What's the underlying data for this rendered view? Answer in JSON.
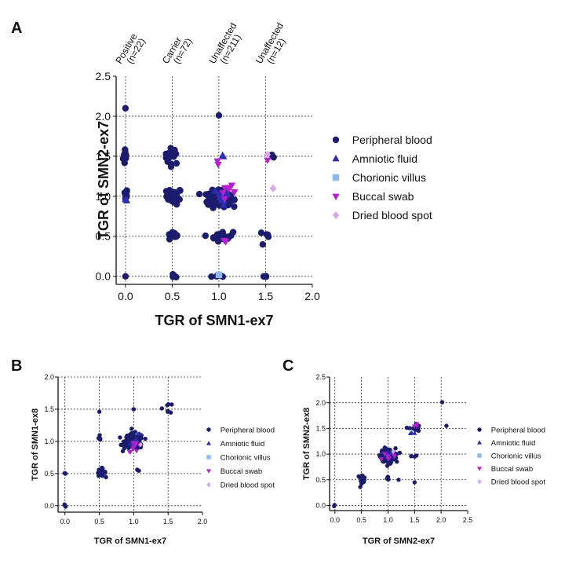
{
  "colors": {
    "peripheral_blood": "#1c1c6e",
    "amniotic_fluid": "#2d2db3",
    "chorionic_villus": "#8fb8f0",
    "buccal_swab": "#b51fd1",
    "dried_blood_spot": "#d9a6f0",
    "grid": "#333333"
  },
  "legend": [
    {
      "key": "peripheral_blood",
      "label": "Peripheral blood",
      "marker": "circle"
    },
    {
      "key": "amniotic_fluid",
      "label": "Amniotic fluid",
      "marker": "triangle-up"
    },
    {
      "key": "chorionic_villus",
      "label": "Chorionic villus",
      "marker": "square"
    },
    {
      "key": "buccal_swab",
      "label": "Buccal swab",
      "marker": "triangle-down"
    },
    {
      "key": "dried_blood_spot",
      "label": "Dried blood spot",
      "marker": "diamond"
    }
  ],
  "panels": {
    "A": {
      "letter": "A"
    },
    "B": {
      "letter": "B"
    },
    "C": {
      "letter": "C"
    }
  },
  "chart_data": [
    {
      "id": "A",
      "type": "scatter",
      "xlabel": "TGR of SMN1-ex7",
      "ylabel": "TGR of SMN2-ex7",
      "xlim": [
        -0.1,
        2.0
      ],
      "ylim": [
        -0.1,
        2.5
      ],
      "xticks": [
        0.0,
        0.5,
        1.0,
        1.5,
        2.0
      ],
      "xtick_labels": [
        "0.0",
        "0.5",
        "1.0",
        "1.5",
        "2.0"
      ],
      "yticks": [
        0.0,
        0.5,
        1.0,
        1.5,
        2.0,
        2.5
      ],
      "ytick_labels": [
        "0.0",
        "0.5",
        "1.0",
        "1.5",
        "2.0",
        "2.5"
      ],
      "grid": true,
      "xgrid": [
        0.0,
        0.5,
        1.0,
        1.5
      ],
      "ygrid": [
        0.0,
        0.5,
        1.0,
        1.5,
        2.0
      ],
      "group_labels": [
        {
          "x": 0.0,
          "lines": [
            "Positive",
            "(n=22)"
          ]
        },
        {
          "x": 0.5,
          "lines": [
            "Carrier",
            "(n=72)"
          ]
        },
        {
          "x": 1.0,
          "lines": [
            "Unaffected",
            "(n=211)"
          ]
        },
        {
          "x": 1.5,
          "lines": [
            "Unaffected",
            "(n=12)"
          ]
        }
      ],
      "legend_placement": "right",
      "clusters": [
        {
          "series": "peripheral_blood",
          "cx": 0.0,
          "cy": 2.1,
          "sx": 0.01,
          "sy": 0.01,
          "n": 1
        },
        {
          "series": "peripheral_blood",
          "cx": 0.0,
          "cy": 1.5,
          "sx": 0.012,
          "sy": 0.06,
          "n": 10
        },
        {
          "series": "peripheral_blood",
          "cx": 0.0,
          "cy": 1.02,
          "sx": 0.012,
          "sy": 0.04,
          "n": 8
        },
        {
          "series": "peripheral_blood",
          "cx": 0.0,
          "cy": 0.0,
          "sx": 0.01,
          "sy": 0.01,
          "n": 1
        },
        {
          "series": "peripheral_blood",
          "cx": 0.5,
          "cy": 1.5,
          "sx": 0.04,
          "sy": 0.05,
          "n": 16
        },
        {
          "series": "peripheral_blood",
          "cx": 0.52,
          "cy": 1.0,
          "sx": 0.04,
          "sy": 0.05,
          "n": 26
        },
        {
          "series": "peripheral_blood",
          "cx": 0.5,
          "cy": 0.5,
          "sx": 0.03,
          "sy": 0.03,
          "n": 10
        },
        {
          "series": "peripheral_blood",
          "cx": 0.52,
          "cy": 0.0,
          "sx": 0.02,
          "sy": 0.01,
          "n": 4
        },
        {
          "series": "peripheral_blood",
          "cx": 1.0,
          "cy": 2.01,
          "sx": 0.01,
          "sy": 0.01,
          "n": 1
        },
        {
          "series": "peripheral_blood",
          "cx": 1.0,
          "cy": 0.97,
          "sx": 0.06,
          "sy": 0.05,
          "n": 150
        },
        {
          "series": "peripheral_blood",
          "cx": 1.03,
          "cy": 0.5,
          "sx": 0.06,
          "sy": 0.03,
          "n": 30
        },
        {
          "series": "peripheral_blood",
          "cx": 1.02,
          "cy": 0.0,
          "sx": 0.05,
          "sy": 0.01,
          "n": 6
        },
        {
          "series": "peripheral_blood",
          "cx": 1.55,
          "cy": 1.47,
          "sx": 0.02,
          "sy": 0.02,
          "n": 2
        },
        {
          "series": "peripheral_blood",
          "cx": 1.5,
          "cy": 0.5,
          "sx": 0.03,
          "sy": 0.03,
          "n": 5
        },
        {
          "series": "peripheral_blood",
          "cx": 1.5,
          "cy": 0.0,
          "sx": 0.02,
          "sy": 0.01,
          "n": 3
        },
        {
          "series": "amniotic_fluid",
          "cx": 1.05,
          "cy": 1.52,
          "sx": 0.02,
          "sy": 0.02,
          "n": 2
        },
        {
          "series": "amniotic_fluid",
          "cx": 0.0,
          "cy": 0.95,
          "sx": 0.01,
          "sy": 0.02,
          "n": 2
        },
        {
          "series": "amniotic_fluid",
          "cx": 1.05,
          "cy": 1.0,
          "sx": 0.05,
          "sy": 0.05,
          "n": 10
        },
        {
          "series": "chorionic_villus",
          "cx": 1.0,
          "cy": 0.02,
          "sx": 0.01,
          "sy": 0.01,
          "n": 1
        },
        {
          "series": "buccal_swab",
          "cx": 1.0,
          "cy": 1.45,
          "sx": 0.02,
          "sy": 0.02,
          "n": 2
        },
        {
          "series": "buccal_swab",
          "cx": 1.1,
          "cy": 1.05,
          "sx": 0.04,
          "sy": 0.04,
          "n": 8
        },
        {
          "series": "buccal_swab",
          "cx": 1.06,
          "cy": 0.47,
          "sx": 0.02,
          "sy": 0.02,
          "n": 2
        },
        {
          "series": "buccal_swab",
          "cx": 1.52,
          "cy": 1.45,
          "sx": 0.02,
          "sy": 0.02,
          "n": 1
        },
        {
          "series": "dried_blood_spot",
          "cx": 1.58,
          "cy": 1.1,
          "sx": 0.01,
          "sy": 0.01,
          "n": 1
        },
        {
          "series": "dried_blood_spot",
          "cx": 1.52,
          "cy": 1.52,
          "sx": 0.01,
          "sy": 0.01,
          "n": 1
        }
      ]
    },
    {
      "id": "B",
      "type": "scatter",
      "xlabel": "TGR of SMN1-ex7",
      "ylabel": "TGR of SMN1-ex8",
      "xlim": [
        -0.1,
        2.0
      ],
      "ylim": [
        -0.1,
        2.0
      ],
      "xticks": [
        0.0,
        0.5,
        1.0,
        1.5,
        2.0
      ],
      "xtick_labels": [
        "0.0",
        "0.5",
        "1.0",
        "1.5",
        "2.0"
      ],
      "yticks": [
        0.0,
        0.5,
        1.0,
        1.5,
        2.0
      ],
      "ytick_labels": [
        "0.0",
        "0.5",
        "1.0",
        "1.5",
        "2.0"
      ],
      "grid": true,
      "xgrid": [
        0.0,
        0.5,
        1.0,
        1.5
      ],
      "ygrid": [
        0.0,
        0.5,
        1.0,
        1.5,
        2.0
      ],
      "legend_placement": "right",
      "clusters": [
        {
          "series": "peripheral_blood",
          "cx": 0.0,
          "cy": 0.0,
          "sx": 0.01,
          "sy": 0.01,
          "n": 4
        },
        {
          "series": "peripheral_blood",
          "cx": 0.0,
          "cy": 0.5,
          "sx": 0.01,
          "sy": 0.01,
          "n": 2
        },
        {
          "series": "peripheral_blood",
          "cx": 0.53,
          "cy": 0.52,
          "sx": 0.03,
          "sy": 0.03,
          "n": 18
        },
        {
          "series": "peripheral_blood",
          "cx": 0.5,
          "cy": 1.0,
          "sx": 0.02,
          "sy": 0.05,
          "n": 6
        },
        {
          "series": "peripheral_blood",
          "cx": 0.5,
          "cy": 1.46,
          "sx": 0.01,
          "sy": 0.01,
          "n": 1
        },
        {
          "series": "peripheral_blood",
          "cx": 1.0,
          "cy": 1.0,
          "sx": 0.07,
          "sy": 0.06,
          "n": 150
        },
        {
          "series": "peripheral_blood",
          "cx": 1.05,
          "cy": 0.55,
          "sx": 0.02,
          "sy": 0.02,
          "n": 3
        },
        {
          "series": "peripheral_blood",
          "cx": 1.0,
          "cy": 1.5,
          "sx": 0.01,
          "sy": 0.01,
          "n": 1
        },
        {
          "series": "peripheral_blood",
          "cx": 1.5,
          "cy": 1.52,
          "sx": 0.04,
          "sy": 0.04,
          "n": 8
        },
        {
          "series": "amniotic_fluid",
          "cx": 1.05,
          "cy": 1.0,
          "sx": 0.05,
          "sy": 0.05,
          "n": 8
        },
        {
          "series": "buccal_swab",
          "cx": 1.02,
          "cy": 0.92,
          "sx": 0.05,
          "sy": 0.04,
          "n": 10
        },
        {
          "series": "dried_blood_spot",
          "cx": 1.1,
          "cy": 0.95,
          "sx": 0.02,
          "sy": 0.02,
          "n": 1
        }
      ]
    },
    {
      "id": "C",
      "type": "scatter",
      "xlabel": "TGR of SMN2-ex7",
      "ylabel": "TGR of SMN2-ex8",
      "xlim": [
        -0.1,
        2.5
      ],
      "ylim": [
        -0.1,
        2.5
      ],
      "xticks": [
        0.0,
        0.5,
        1.0,
        1.5,
        2.0,
        2.5
      ],
      "xtick_labels": [
        "0.0",
        "0.5",
        "1.0",
        "1.5",
        "2.0",
        "2.5"
      ],
      "yticks": [
        0.0,
        0.5,
        1.0,
        1.5,
        2.0,
        2.5
      ],
      "ytick_labels": [
        "0.0",
        "0.5",
        "1.0",
        "1.5",
        "2.0",
        "2.5"
      ],
      "grid": true,
      "xgrid": [
        0.0,
        0.5,
        1.0,
        1.5,
        2.0
      ],
      "ygrid": [
        0.0,
        0.5,
        1.0,
        1.5,
        2.0
      ],
      "legend_placement": "right",
      "clusters": [
        {
          "series": "peripheral_blood",
          "cx": 0.0,
          "cy": 0.0,
          "sx": 0.01,
          "sy": 0.01,
          "n": 2
        },
        {
          "series": "peripheral_blood",
          "cx": 0.5,
          "cy": 0.52,
          "sx": 0.04,
          "sy": 0.04,
          "n": 16
        },
        {
          "series": "peripheral_blood",
          "cx": 1.0,
          "cy": 0.97,
          "sx": 0.07,
          "sy": 0.07,
          "n": 150
        },
        {
          "series": "peripheral_blood",
          "cx": 1.0,
          "cy": 0.5,
          "sx": 0.02,
          "sy": 0.03,
          "n": 4
        },
        {
          "series": "peripheral_blood",
          "cx": 1.5,
          "cy": 1.5,
          "sx": 0.05,
          "sy": 0.05,
          "n": 14
        },
        {
          "series": "peripheral_blood",
          "cx": 1.5,
          "cy": 0.97,
          "sx": 0.03,
          "sy": 0.02,
          "n": 3
        },
        {
          "series": "peripheral_blood",
          "cx": 1.5,
          "cy": 0.45,
          "sx": 0.01,
          "sy": 0.01,
          "n": 1
        },
        {
          "series": "peripheral_blood",
          "cx": 1.2,
          "cy": 0.5,
          "sx": 0.01,
          "sy": 0.01,
          "n": 1
        },
        {
          "series": "peripheral_blood",
          "cx": 2.02,
          "cy": 2.01,
          "sx": 0.01,
          "sy": 0.01,
          "n": 1
        },
        {
          "series": "peripheral_blood",
          "cx": 2.1,
          "cy": 1.55,
          "sx": 0.01,
          "sy": 0.01,
          "n": 1
        },
        {
          "series": "amniotic_fluid",
          "cx": 1.02,
          "cy": 1.0,
          "sx": 0.05,
          "sy": 0.05,
          "n": 8
        },
        {
          "series": "amniotic_fluid",
          "cx": 1.47,
          "cy": 1.45,
          "sx": 0.03,
          "sy": 0.03,
          "n": 3
        },
        {
          "series": "buccal_swab",
          "cx": 1.0,
          "cy": 0.95,
          "sx": 0.05,
          "sy": 0.04,
          "n": 8
        },
        {
          "series": "buccal_swab",
          "cx": 1.55,
          "cy": 1.6,
          "sx": 0.03,
          "sy": 0.04,
          "n": 3
        },
        {
          "series": "dried_blood_spot",
          "cx": 1.1,
          "cy": 1.05,
          "sx": 0.01,
          "sy": 0.01,
          "n": 1
        }
      ]
    }
  ]
}
